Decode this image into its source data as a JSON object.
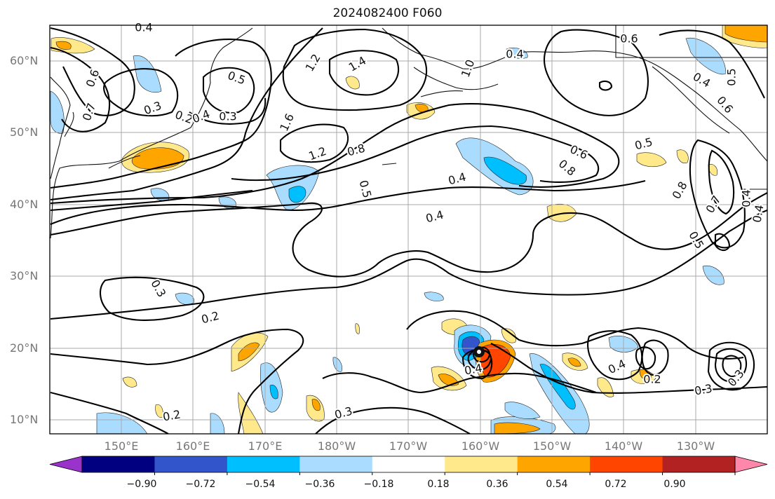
{
  "title": "2024082400 F060",
  "lat_labels": [
    "60°N",
    "50°N",
    "40°N",
    "30°N",
    "20°N",
    "10°N"
  ],
  "lon_labels": [
    "150°E",
    "160°E",
    "170°E",
    "180°W",
    "170°W",
    "160°W",
    "150°W",
    "140°W",
    "130°W"
  ],
  "contour_labels": [
    "0.4",
    "0.6",
    "0.7",
    "0.3",
    "0.2",
    "0.4",
    "0.3",
    "0.5",
    "1.2",
    "1.4",
    "1.0",
    "1.6",
    "1.2",
    "0.8",
    "0.5",
    "0.4",
    "0.4",
    "0.6",
    "0.8",
    "0.5",
    "0.6",
    "0.4",
    "0.5",
    "0.4",
    "0.6",
    "0.8",
    "0.7",
    "0.5",
    "0.4",
    "0.4",
    "0.3",
    "0.2",
    "0.2",
    "0.4",
    "0.3",
    "0.4",
    "0.2",
    "0.3",
    "0.3"
  ],
  "colorbar": {
    "colors": [
      "#9933cc",
      "#000080",
      "#3355cc",
      "#00bfff",
      "#aadcff",
      "#ffffff",
      "#ffe98a",
      "#ffa500",
      "#ff4500",
      "#b22222",
      "#ff88aa"
    ],
    "tick_labels": [
      "−0.90",
      "−0.72",
      "−0.54",
      "−0.36",
      "−0.18",
      "0.18",
      "0.36",
      "0.54",
      "0.72",
      "0.90"
    ]
  }
}
